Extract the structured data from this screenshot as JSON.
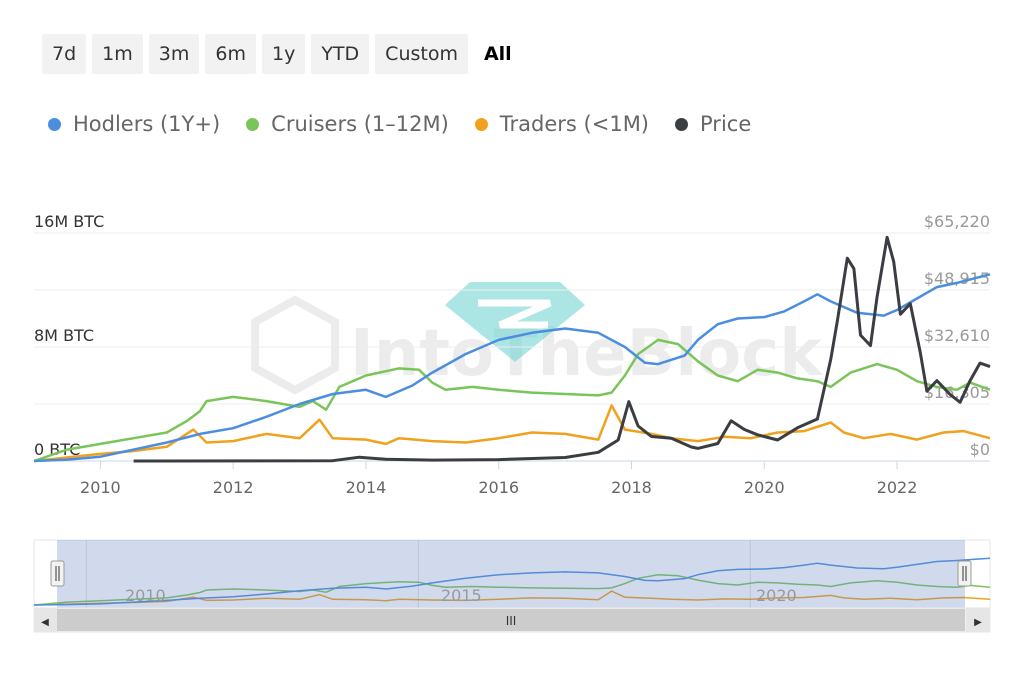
{
  "range_selector": {
    "buttons": [
      {
        "label": "7d",
        "active": false
      },
      {
        "label": "1m",
        "active": false
      },
      {
        "label": "3m",
        "active": false
      },
      {
        "label": "6m",
        "active": false
      },
      {
        "label": "1y",
        "active": false
      },
      {
        "label": "YTD",
        "active": false
      },
      {
        "label": "Custom",
        "active": false
      },
      {
        "label": "All",
        "active": true
      }
    ]
  },
  "legend": [
    {
      "name": "Hodlers (1Y+)",
      "color": "#4b8ee0"
    },
    {
      "name": "Cruisers (1–12M)",
      "color": "#7ac55a"
    },
    {
      "name": "Traders (<1M)",
      "color": "#f0a11e"
    },
    {
      "name": "Price",
      "color": "#3a3d42"
    }
  ],
  "watermark": "IntoTheBlock",
  "chart_data": {
    "type": "line",
    "title": "",
    "x_range": [
      2009,
      2023.4
    ],
    "x_ticks": [
      "2010",
      "2012",
      "2014",
      "2016",
      "2018",
      "2020",
      "2022"
    ],
    "y_left": {
      "unit": "M BTC",
      "range": [
        0,
        16
      ],
      "ticks": [
        "0 BTC",
        "8M BTC",
        "16M BTC"
      ]
    },
    "y_right": {
      "unit": "USD",
      "range": [
        0,
        65220
      ],
      "ticks": [
        "$0",
        "$16,305",
        "$32,610",
        "$48,915",
        "$65,220"
      ]
    },
    "grid": true,
    "series": [
      {
        "name": "Hodlers (1Y+)",
        "axis": "left",
        "color": "#4b8ee0",
        "points": [
          [
            2009.0,
            0
          ],
          [
            2009.5,
            0.1
          ],
          [
            2010.0,
            0.3
          ],
          [
            2010.5,
            0.8
          ],
          [
            2011.0,
            1.3
          ],
          [
            2011.5,
            1.9
          ],
          [
            2012.0,
            2.3
          ],
          [
            2012.5,
            3.1
          ],
          [
            2013.0,
            4.0
          ],
          [
            2013.5,
            4.7
          ],
          [
            2014.0,
            5.0
          ],
          [
            2014.3,
            4.5
          ],
          [
            2014.7,
            5.3
          ],
          [
            2015.0,
            6.2
          ],
          [
            2015.5,
            7.5
          ],
          [
            2016.0,
            8.5
          ],
          [
            2016.5,
            9.0
          ],
          [
            2017.0,
            9.3
          ],
          [
            2017.5,
            9.0
          ],
          [
            2017.9,
            8.0
          ],
          [
            2018.2,
            6.9
          ],
          [
            2018.4,
            6.8
          ],
          [
            2018.8,
            7.4
          ],
          [
            2019.0,
            8.5
          ],
          [
            2019.3,
            9.6
          ],
          [
            2019.6,
            10.0
          ],
          [
            2020.0,
            10.1
          ],
          [
            2020.3,
            10.5
          ],
          [
            2020.6,
            11.2
          ],
          [
            2020.8,
            11.7
          ],
          [
            2021.0,
            11.2
          ],
          [
            2021.4,
            10.4
          ],
          [
            2021.8,
            10.2
          ],
          [
            2022.0,
            10.6
          ],
          [
            2022.3,
            11.4
          ],
          [
            2022.6,
            12.2
          ],
          [
            2022.9,
            12.5
          ],
          [
            2023.4,
            13.1
          ]
        ]
      },
      {
        "name": "Cruisers (1–12M)",
        "axis": "left",
        "color": "#7ac55a",
        "points": [
          [
            2009.0,
            0
          ],
          [
            2009.5,
            0.8
          ],
          [
            2010.0,
            1.2
          ],
          [
            2010.5,
            1.6
          ],
          [
            2011.0,
            2.0
          ],
          [
            2011.3,
            2.8
          ],
          [
            2011.5,
            3.5
          ],
          [
            2011.6,
            4.2
          ],
          [
            2012.0,
            4.5
          ],
          [
            2012.5,
            4.2
          ],
          [
            2013.0,
            3.8
          ],
          [
            2013.2,
            4.2
          ],
          [
            2013.4,
            3.6
          ],
          [
            2013.6,
            5.2
          ],
          [
            2014.0,
            6.0
          ],
          [
            2014.5,
            6.5
          ],
          [
            2014.8,
            6.4
          ],
          [
            2015.0,
            5.5
          ],
          [
            2015.2,
            5.0
          ],
          [
            2015.6,
            5.2
          ],
          [
            2016.0,
            5.0
          ],
          [
            2016.5,
            4.8
          ],
          [
            2017.0,
            4.7
          ],
          [
            2017.5,
            4.6
          ],
          [
            2017.7,
            4.8
          ],
          [
            2017.9,
            6.0
          ],
          [
            2018.1,
            7.5
          ],
          [
            2018.4,
            8.5
          ],
          [
            2018.7,
            8.2
          ],
          [
            2019.0,
            7.0
          ],
          [
            2019.3,
            6.0
          ],
          [
            2019.6,
            5.6
          ],
          [
            2019.9,
            6.4
          ],
          [
            2020.2,
            6.2
          ],
          [
            2020.5,
            5.8
          ],
          [
            2020.8,
            5.6
          ],
          [
            2021.0,
            5.2
          ],
          [
            2021.3,
            6.2
          ],
          [
            2021.7,
            6.8
          ],
          [
            2022.0,
            6.4
          ],
          [
            2022.3,
            5.6
          ],
          [
            2022.6,
            5.2
          ],
          [
            2022.9,
            5.0
          ],
          [
            2023.1,
            5.5
          ],
          [
            2023.4,
            5.0
          ]
        ]
      },
      {
        "name": "Traders (<1M)",
        "axis": "left",
        "color": "#f0a11e",
        "points": [
          [
            2009.0,
            0
          ],
          [
            2010.0,
            0.5
          ],
          [
            2010.5,
            0.7
          ],
          [
            2011.0,
            1.0
          ],
          [
            2011.4,
            2.2
          ],
          [
            2011.6,
            1.3
          ],
          [
            2012.0,
            1.4
          ],
          [
            2012.5,
            1.9
          ],
          [
            2013.0,
            1.6
          ],
          [
            2013.3,
            2.9
          ],
          [
            2013.5,
            1.6
          ],
          [
            2014.0,
            1.5
          ],
          [
            2014.3,
            1.2
          ],
          [
            2014.5,
            1.6
          ],
          [
            2015.0,
            1.4
          ],
          [
            2015.5,
            1.3
          ],
          [
            2016.0,
            1.6
          ],
          [
            2016.5,
            2.0
          ],
          [
            2017.0,
            1.9
          ],
          [
            2017.5,
            1.5
          ],
          [
            2017.7,
            3.9
          ],
          [
            2017.9,
            2.2
          ],
          [
            2018.3,
            1.9
          ],
          [
            2018.6,
            1.6
          ],
          [
            2019.0,
            1.4
          ],
          [
            2019.4,
            1.7
          ],
          [
            2019.8,
            1.6
          ],
          [
            2020.2,
            2.0
          ],
          [
            2020.6,
            2.1
          ],
          [
            2021.0,
            2.7
          ],
          [
            2021.2,
            2.0
          ],
          [
            2021.5,
            1.6
          ],
          [
            2021.9,
            1.9
          ],
          [
            2022.3,
            1.5
          ],
          [
            2022.7,
            2.0
          ],
          [
            2023.0,
            2.1
          ],
          [
            2023.4,
            1.6
          ]
        ]
      },
      {
        "name": "Price",
        "axis": "right",
        "color": "#3a3d42",
        "points": [
          [
            2010.5,
            0
          ],
          [
            2011.0,
            0
          ],
          [
            2013.5,
            100
          ],
          [
            2013.9,
            1100
          ],
          [
            2014.3,
            500
          ],
          [
            2015.0,
            250
          ],
          [
            2016.0,
            400
          ],
          [
            2017.0,
            1000
          ],
          [
            2017.5,
            2500
          ],
          [
            2017.8,
            6000
          ],
          [
            2017.96,
            17000
          ],
          [
            2018.1,
            10000
          ],
          [
            2018.3,
            7000
          ],
          [
            2018.6,
            6500
          ],
          [
            2018.9,
            4000
          ],
          [
            2019.0,
            3600
          ],
          [
            2019.3,
            5000
          ],
          [
            2019.5,
            11500
          ],
          [
            2019.7,
            9000
          ],
          [
            2019.9,
            7500
          ],
          [
            2020.2,
            6000
          ],
          [
            2020.5,
            9500
          ],
          [
            2020.8,
            12000
          ],
          [
            2021.0,
            29000
          ],
          [
            2021.1,
            40000
          ],
          [
            2021.25,
            58000
          ],
          [
            2021.35,
            55000
          ],
          [
            2021.45,
            36000
          ],
          [
            2021.6,
            33000
          ],
          [
            2021.7,
            47000
          ],
          [
            2021.85,
            64000
          ],
          [
            2021.95,
            57000
          ],
          [
            2022.05,
            42000
          ],
          [
            2022.2,
            45000
          ],
          [
            2022.35,
            31000
          ],
          [
            2022.45,
            20000
          ],
          [
            2022.6,
            23000
          ],
          [
            2022.8,
            19000
          ],
          [
            2022.95,
            16800
          ],
          [
            2023.1,
            23000
          ],
          [
            2023.25,
            28000
          ],
          [
            2023.4,
            27000
          ]
        ]
      }
    ]
  },
  "navigator": {
    "tick_labels": [
      "2010",
      "2015",
      "2020"
    ],
    "scroll_grip": "III",
    "left_arrow": "◀",
    "right_arrow": "▶"
  }
}
